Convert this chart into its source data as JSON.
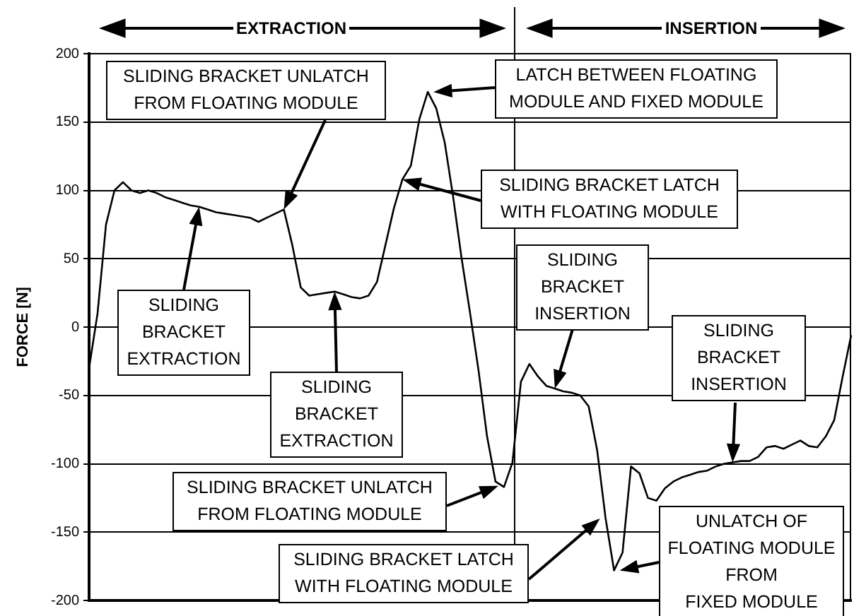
{
  "chart_data": {
    "type": "line",
    "ylabel": "FORCE [N]",
    "categories": [
      null,
      null,
      null,
      null,
      null,
      null,
      null,
      null,
      null,
      null,
      null,
      null,
      null,
      null,
      null,
      null,
      null,
      null,
      null,
      null,
      null,
      null,
      null,
      null,
      null,
      null,
      null,
      null,
      null,
      null,
      null,
      null,
      null,
      null,
      null,
      null,
      null,
      null,
      null,
      null,
      null,
      null,
      null,
      null,
      null,
      null,
      null,
      null,
      null,
      null,
      null,
      null,
      null,
      null,
      null,
      null,
      null,
      null,
      null,
      null,
      null,
      null,
      null,
      null,
      null,
      null,
      null,
      null,
      null,
      null,
      null,
      null,
      null,
      null,
      null,
      null,
      null,
      null,
      null,
      null,
      null,
      null,
      null,
      null,
      null,
      null,
      null,
      null,
      null,
      null,
      null
    ],
    "series": [
      {
        "color": "#000000",
        "values": [
          -30,
          10,
          75,
          100,
          106,
          100,
          98,
          100,
          98,
          95,
          93,
          91,
          89,
          88,
          86,
          84,
          83,
          82,
          81,
          80,
          77,
          80,
          83,
          86,
          60,
          29,
          23,
          24,
          25,
          26,
          24,
          22,
          21,
          23,
          33,
          60,
          87,
          108,
          118,
          152,
          172,
          160,
          135,
          95,
          50,
          10,
          -32,
          -80,
          -113,
          -117,
          -99,
          -40,
          -27,
          -36,
          -43,
          -45,
          -47,
          -48,
          -50,
          -58,
          -90,
          -140,
          -178,
          -165,
          -102,
          -107,
          -125,
          -127,
          -118,
          -113,
          -110,
          -108,
          -106,
          -105,
          -102,
          -100,
          -99,
          -98,
          -98,
          -95,
          -88,
          -87,
          -89,
          -86,
          -83,
          -87,
          -88,
          -80,
          -68,
          -36,
          -6
        ]
      }
    ],
    "ylim": [
      -200,
      200
    ],
    "yticks": [
      -200,
      -150,
      -100,
      -50,
      0,
      50,
      100,
      150,
      200
    ],
    "grid": "y",
    "legend": false,
    "marker": "none",
    "line_style": "solid",
    "tick_labels": "y",
    "annotations": [
      "EXTRACTION",
      "INSERTION",
      "SLIDING BRACKET UNLATCH FROM FLOATING MODULE",
      "LATCH BETWEEN FLOATING MODULE AND FIXED MODULE",
      "SLIDING BRACKET LATCH WITH FLOATING MODULE",
      "SLIDING BRACKET INSERTION",
      "SLIDING BRACKET EXTRACTION",
      "SLIDING BRACKET EXTRACTION",
      "SLIDING BRACKET INSERTION",
      "SLIDING BRACKET UNLATCH FROM FLOATING MODULE",
      "SLIDING BRACKET LATCH WITH FLOATING MODULE",
      "UNLATCH OF FLOATING MODULE FROM FIXED MODULE"
    ]
  }
}
